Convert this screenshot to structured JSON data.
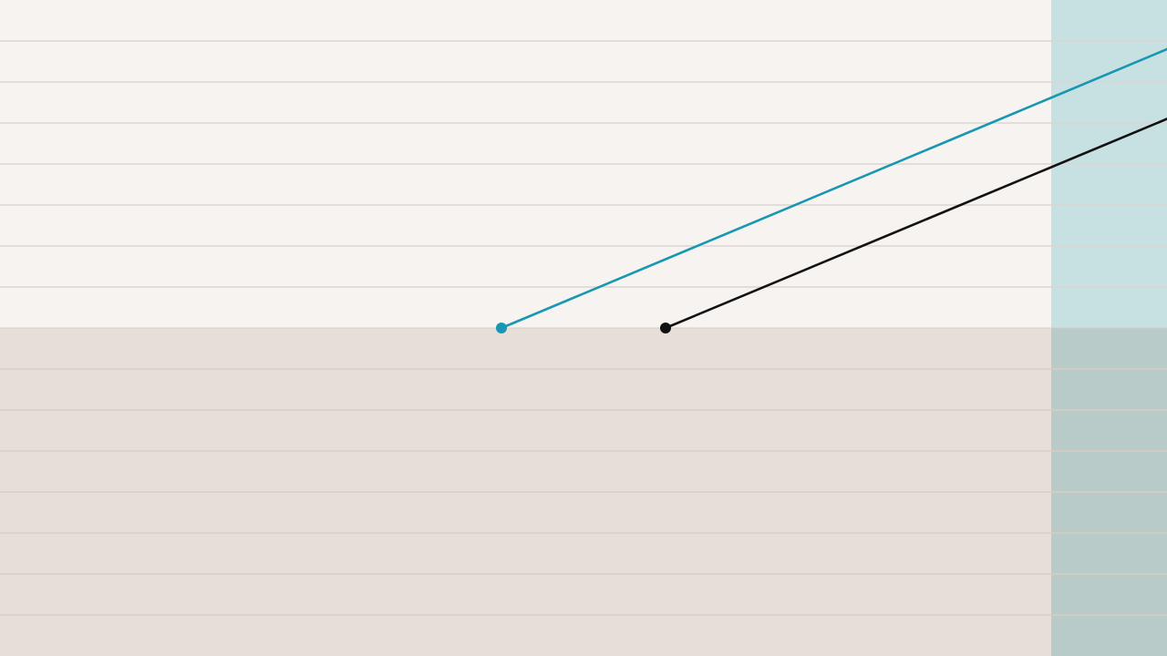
{
  "colors": {
    "upper_band": "#f6f3f0",
    "lower_band": "#e6ded8",
    "upper_grid": "#dcd6d1",
    "lower_grid": "#d8cdc3",
    "highlight_upper": "#c7e0e2",
    "highlight_lower": "#b8cbc9",
    "series_teal": "#1797b2",
    "series_black": "#111111"
  },
  "chart_data": {
    "type": "line",
    "title": "",
    "xlabel": "",
    "ylabel": "",
    "xlim": [
      0,
      1280
    ],
    "ylim": [
      0,
      16
    ],
    "baseline_y": 8,
    "grid": "horizontal",
    "grid_y_values": [
      1,
      2,
      3,
      4,
      5,
      6,
      7,
      8,
      9,
      10,
      11,
      12,
      13,
      14,
      15
    ],
    "highlight_x_range": [
      1153,
      1280
    ],
    "series": [
      {
        "color": "#1797b2",
        "points": [
          {
            "x": 550,
            "y": 8
          },
          {
            "x": 1280,
            "y": 14.8
          }
        ]
      },
      {
        "color": "#111111",
        "points": [
          {
            "x": 730,
            "y": 8
          },
          {
            "x": 1280,
            "y": 13.1
          }
        ]
      }
    ]
  }
}
